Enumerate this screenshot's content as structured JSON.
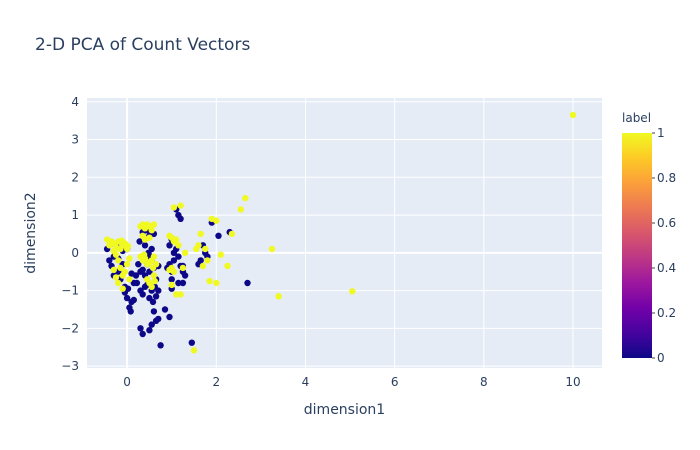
{
  "chart_data": {
    "type": "scatter",
    "title": "2-D PCA of Count Vectors",
    "xlabel": "dimension1",
    "ylabel": "dimension2",
    "xlim": [
      -0.9,
      10.65
    ],
    "ylim": [
      -3.05,
      4.1
    ],
    "x_ticks": [
      0,
      2,
      4,
      6,
      8,
      10
    ],
    "y_ticks": [
      -3,
      -2,
      -1,
      0,
      1,
      2,
      3,
      4
    ],
    "x_tick_labels": [
      "0",
      "2",
      "4",
      "6",
      "8",
      "10"
    ],
    "y_tick_labels": [
      "−3",
      "−2",
      "−1",
      "0",
      "1",
      "2",
      "3",
      "4"
    ],
    "grid": true,
    "colorbar": {
      "title": "label",
      "range": [
        0,
        1
      ],
      "ticks": [
        0,
        0.2,
        0.4,
        0.6,
        0.8,
        1
      ],
      "tick_labels": [
        "0",
        "0.2",
        "0.4",
        "0.6",
        "0.8",
        "1"
      ],
      "colorscale": [
        "#0d0887",
        "#46039f",
        "#7201a8",
        "#9c179e",
        "#bd3786",
        "#d8576b",
        "#ed7953",
        "#fb9f3a",
        "#fdca26",
        "#f0f921"
      ]
    },
    "series": [
      {
        "label": 0,
        "color": "#0d0887",
        "points": [
          [
            -0.45,
            0.1
          ],
          [
            -0.4,
            -0.2
          ],
          [
            -0.35,
            -0.35
          ],
          [
            -0.3,
            -0.1
          ],
          [
            -0.25,
            0.2
          ],
          [
            -0.2,
            -0.5
          ],
          [
            -0.15,
            -0.7
          ],
          [
            -0.1,
            -0.3
          ],
          [
            -0.05,
            -0.9
          ],
          [
            0.0,
            -1.2
          ],
          [
            0.05,
            -1.45
          ],
          [
            0.08,
            -1.55
          ],
          [
            0.1,
            -1.3
          ],
          [
            0.15,
            -0.8
          ],
          [
            0.2,
            -0.6
          ],
          [
            -0.3,
            -0.6
          ],
          [
            -0.2,
            -0.15
          ],
          [
            -0.1,
            0.05
          ],
          [
            0.0,
            0.1
          ],
          [
            -0.35,
            0.25
          ],
          [
            0.25,
            -0.3
          ],
          [
            0.3,
            -0.5
          ],
          [
            0.35,
            -0.45
          ],
          [
            0.4,
            -0.6
          ],
          [
            0.45,
            -0.3
          ],
          [
            0.5,
            -0.5
          ],
          [
            0.55,
            -0.2
          ],
          [
            0.6,
            -0.4
          ],
          [
            0.65,
            -0.7
          ],
          [
            0.7,
            -0.35
          ],
          [
            0.28,
            0.3
          ],
          [
            0.35,
            0.55
          ],
          [
            0.4,
            0.2
          ],
          [
            0.45,
            0.6
          ],
          [
            0.5,
            0.45
          ],
          [
            0.55,
            0.1
          ],
          [
            0.6,
            0.5
          ],
          [
            0.38,
            0.7
          ],
          [
            0.48,
            0.0
          ],
          [
            0.52,
            -0.1
          ],
          [
            0.3,
            -1.0
          ],
          [
            0.35,
            -1.1
          ],
          [
            0.5,
            -1.2
          ],
          [
            0.55,
            -1.0
          ],
          [
            0.58,
            -1.3
          ],
          [
            0.45,
            -0.85
          ],
          [
            0.62,
            -0.9
          ],
          [
            0.7,
            -1.0
          ],
          [
            0.65,
            -1.15
          ],
          [
            0.4,
            -0.9
          ],
          [
            0.3,
            -2.0
          ],
          [
            0.35,
            -2.15
          ],
          [
            0.55,
            -1.9
          ],
          [
            0.6,
            -1.55
          ],
          [
            0.65,
            -1.8
          ],
          [
            0.75,
            -2.45
          ],
          [
            0.85,
            -1.5
          ],
          [
            0.95,
            -1.7
          ],
          [
            0.7,
            -1.75
          ],
          [
            0.5,
            -2.05
          ],
          [
            0.9,
            -0.4
          ],
          [
            0.95,
            -0.3
          ],
          [
            1.0,
            -0.5
          ],
          [
            1.05,
            -0.2
          ],
          [
            1.1,
            0.1
          ],
          [
            1.15,
            -0.1
          ],
          [
            1.2,
            -0.35
          ],
          [
            1.25,
            -0.5
          ],
          [
            1.0,
            -0.7
          ],
          [
            1.15,
            -0.8
          ],
          [
            0.95,
            0.2
          ],
          [
            1.0,
            0.35
          ],
          [
            1.05,
            0.0
          ],
          [
            1.1,
            1.15
          ],
          [
            1.15,
            1.0
          ],
          [
            1.2,
            0.9
          ],
          [
            1.25,
            -0.35
          ],
          [
            1.3,
            -0.6
          ],
          [
            1.0,
            -0.95
          ],
          [
            1.25,
            -0.8
          ],
          [
            1.45,
            -2.38
          ],
          [
            1.6,
            -0.3
          ],
          [
            1.7,
            0.2
          ],
          [
            1.75,
            0.0
          ],
          [
            1.8,
            -0.1
          ],
          [
            1.9,
            0.8
          ],
          [
            2.05,
            0.45
          ],
          [
            2.3,
            0.55
          ],
          [
            2.7,
            -0.8
          ],
          [
            1.65,
            -0.2
          ],
          [
            -0.05,
            -1.05
          ],
          [
            0.15,
            -1.25
          ],
          [
            0.02,
            -0.95
          ],
          [
            0.22,
            -0.8
          ],
          [
            0.1,
            -0.55
          ]
        ]
      },
      {
        "label": 1,
        "color": "#f0f921",
        "points": [
          [
            -0.45,
            0.35
          ],
          [
            -0.4,
            0.2
          ],
          [
            -0.35,
            0.3
          ],
          [
            -0.3,
            0.25
          ],
          [
            -0.25,
            0.15
          ],
          [
            -0.2,
            0.3
          ],
          [
            -0.15,
            0.1
          ],
          [
            -0.1,
            0.2
          ],
          [
            -0.05,
            0.25
          ],
          [
            0.0,
            0.1
          ],
          [
            -0.3,
            0.05
          ],
          [
            -0.25,
            -0.05
          ],
          [
            -0.2,
            -0.2
          ],
          [
            -0.15,
            -0.4
          ],
          [
            -0.1,
            -0.6
          ],
          [
            -0.05,
            -0.5
          ],
          [
            0.0,
            -0.3
          ],
          [
            0.05,
            -0.7
          ],
          [
            -0.2,
            -0.8
          ],
          [
            -0.1,
            -0.95
          ],
          [
            0.3,
            0.7
          ],
          [
            0.35,
            0.75
          ],
          [
            0.4,
            0.65
          ],
          [
            0.45,
            0.75
          ],
          [
            0.5,
            0.7
          ],
          [
            0.55,
            0.6
          ],
          [
            0.6,
            0.75
          ],
          [
            0.35,
            0.45
          ],
          [
            0.4,
            0.35
          ],
          [
            0.5,
            0.4
          ],
          [
            0.3,
            -0.1
          ],
          [
            0.35,
            -0.2
          ],
          [
            0.4,
            -0.15
          ],
          [
            0.45,
            -0.3
          ],
          [
            0.5,
            -0.25
          ],
          [
            0.55,
            -0.2
          ],
          [
            0.6,
            -0.1
          ],
          [
            0.65,
            -0.3
          ],
          [
            0.38,
            -0.05
          ],
          [
            0.58,
            -0.4
          ],
          [
            0.45,
            -0.7
          ],
          [
            0.5,
            -0.8
          ],
          [
            0.55,
            -0.9
          ],
          [
            0.6,
            -0.6
          ],
          [
            0.62,
            -0.75
          ],
          [
            0.95,
            -0.45
          ],
          [
            1.0,
            -0.4
          ],
          [
            1.05,
            -0.5
          ],
          [
            1.1,
            -1.1
          ],
          [
            1.2,
            -1.1
          ],
          [
            0.95,
            0.45
          ],
          [
            1.0,
            0.4
          ],
          [
            1.05,
            0.3
          ],
          [
            1.1,
            0.35
          ],
          [
            1.15,
            0.2
          ],
          [
            1.2,
            1.25
          ],
          [
            1.05,
            1.2
          ],
          [
            1.25,
            -0.4
          ],
          [
            1.3,
            0.0
          ],
          [
            1.0,
            -0.85
          ],
          [
            1.55,
            0.1
          ],
          [
            1.6,
            0.2
          ],
          [
            1.65,
            0.5
          ],
          [
            1.75,
            0.1
          ],
          [
            1.8,
            -0.2
          ],
          [
            1.9,
            0.9
          ],
          [
            2.0,
            0.85
          ],
          [
            2.1,
            -0.05
          ],
          [
            2.25,
            -0.35
          ],
          [
            2.35,
            0.5
          ],
          [
            1.85,
            -0.75
          ],
          [
            2.0,
            -0.8
          ],
          [
            2.55,
            1.15
          ],
          [
            2.65,
            1.45
          ],
          [
            3.25,
            0.1
          ],
          [
            3.4,
            -1.15
          ],
          [
            5.05,
            -1.02
          ],
          [
            10.0,
            3.65
          ],
          [
            1.5,
            -2.58
          ],
          [
            1.7,
            -0.35
          ],
          [
            -0.3,
            -0.45
          ],
          [
            -0.25,
            -0.65
          ],
          [
            0.05,
            -0.15
          ],
          [
            -0.12,
            0.32
          ],
          [
            0.02,
            0.18
          ]
        ]
      }
    ]
  }
}
